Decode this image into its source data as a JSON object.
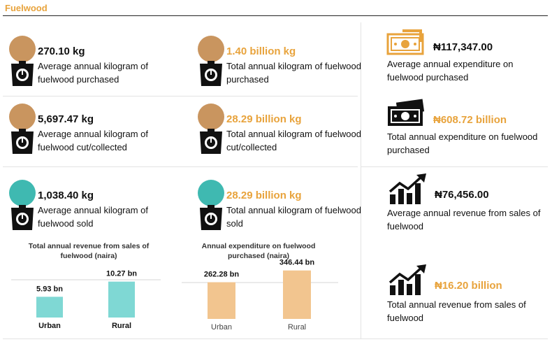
{
  "header": {
    "title": "Fuelwood"
  },
  "stats": [
    {
      "value": "270.10 kg",
      "desc": "Average annual kilogram of fuelwood purchased",
      "icon": "scale-icon",
      "color": "#c9955f"
    },
    {
      "value": "1.40 billion kg",
      "desc": "Total annual kilogram of fuelwood purchased",
      "icon": "scale-icon",
      "color": "#c9955f"
    },
    {
      "value": "5,697.47 kg",
      "desc": "Average annual kilogram of fuelwood cut/collected",
      "icon": "scale-icon",
      "color": "#c9955f"
    },
    {
      "value": "28.29 billion kg",
      "desc": "Total annual kilogram of fuelwood cut/collected",
      "icon": "scale-icon",
      "color": "#c9955f"
    },
    {
      "value": "1,038.40 kg",
      "desc": "Average annual kilogram of fuelwood sold",
      "icon": "scale-icon",
      "color": "#3fb9b1"
    },
    {
      "value": "28.29 billion kg",
      "desc": "Total annual kilogram of fuelwood sold",
      "icon": "scale-icon",
      "color": "#3fb9b1"
    }
  ],
  "right_stats": [
    {
      "value": "₦117,347.00",
      "desc": "Average annual expenditure on fuelwood purchased",
      "icon": "money-icon"
    },
    {
      "value": "₦608.72 billion",
      "desc": "Total annual expenditure on fuelwood purchased",
      "icon": "money-stack-icon"
    },
    {
      "value": "₦76,456.00",
      "desc": "Average annual revenue from sales of fuelwood",
      "icon": "growth-chart-icon"
    },
    {
      "value": "₦16.20 billion",
      "desc": "Total annual revenue from sales of fuelwood",
      "icon": "growth-chart-icon"
    }
  ],
  "colors": {
    "accent": "#e8a33c",
    "teal": "#7fd8d4",
    "tan": "#f2c58f",
    "brown": "#c9955f"
  },
  "chart_data": [
    {
      "type": "bar",
      "title": "Total annual revenue from sales of fuelwood (naira)",
      "categories": [
        "Urban",
        "Rural"
      ],
      "values": [
        5.93,
        10.27
      ],
      "data_labels": [
        "5.93 bn",
        "10.27 bn"
      ],
      "ylim": [
        0,
        12
      ],
      "color": "#7fd8d4",
      "grid": false
    },
    {
      "type": "bar",
      "title": "Annual expenditure on fuelwood purchased (naira)",
      "categories": [
        "Urban",
        "Rural"
      ],
      "values": [
        262.28,
        346.44
      ],
      "data_labels": [
        "262.28 bn",
        "346.44 bn"
      ],
      "ylim": [
        0,
        400
      ],
      "color": "#f2c58f",
      "grid": false
    }
  ]
}
